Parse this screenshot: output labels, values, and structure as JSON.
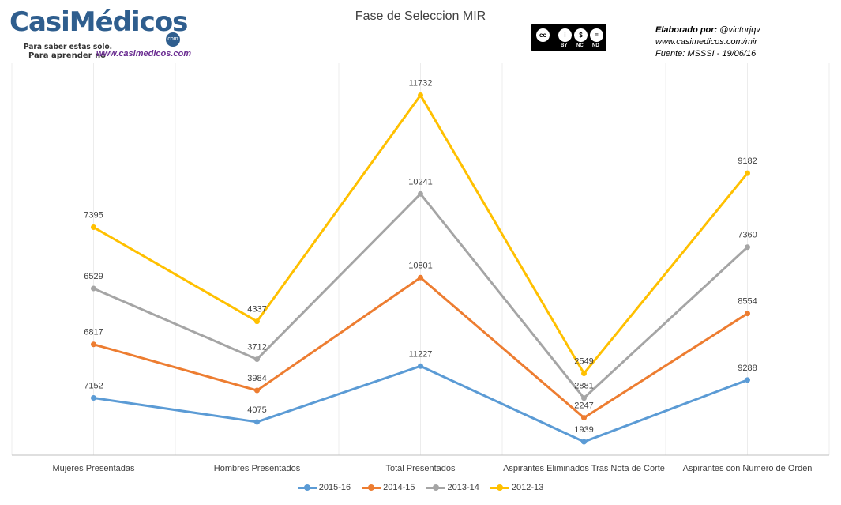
{
  "logo": {
    "name": "CasiMédicos",
    "com": "com",
    "tagline_1": "Para saber estas solo.",
    "tagline_2": "Para aprender no",
    "url": "www.casimedicos.com"
  },
  "cc_badge": {
    "cc": "cc",
    "by": "BY",
    "nc": "NC",
    "nd": "ND",
    "color": "#000000"
  },
  "credits": {
    "line1_bold": "Elaborado por:",
    "line1_handle": "@victorjqv",
    "line2": "www.casimedicos.com/mir",
    "line3": "Fuente: MSSSI - 19/06/16"
  },
  "chart_data": {
    "type": "line",
    "title": "Fase de Seleccion MIR",
    "categories": [
      "Mujeres Presentadas",
      "Hombres Presentados",
      "Total Presentados",
      "Aspirantes Eliminados Tras Nota de Corte",
      "Aspirantes con Numero de Orden"
    ],
    "series": [
      {
        "name": "2015-16",
        "color": "#5b9bd5",
        "values": [
          7152,
          4075,
          11227,
          1939,
          9288
        ],
        "plot_levels": [
          0.1462,
          0.0848,
          0.2273,
          0.0342,
          0.1919
        ]
      },
      {
        "name": "2014-15",
        "color": "#ed7d31",
        "values": [
          6817,
          3984,
          10801,
          2247,
          8554
        ],
        "plot_levels": [
          0.2828,
          0.1652,
          0.4531,
          0.0955,
          0.3615
        ]
      },
      {
        "name": "2013-14",
        "color": "#a5a5a5",
        "values": [
          6529,
          3712,
          10241,
          2881,
          7360
        ],
        "plot_levels": [
          0.4253,
          0.2448,
          0.6667,
          0.1459,
          0.5308
        ]
      },
      {
        "name": "2012-13",
        "color": "#ffc000",
        "values": [
          7395,
          4337,
          11732,
          2549,
          9182
        ],
        "plot_levels": [
          0.5816,
          0.3414,
          0.9184,
          0.2086,
          0.7194
        ]
      }
    ],
    "grid": "vertical",
    "legend": "bottom-center"
  }
}
